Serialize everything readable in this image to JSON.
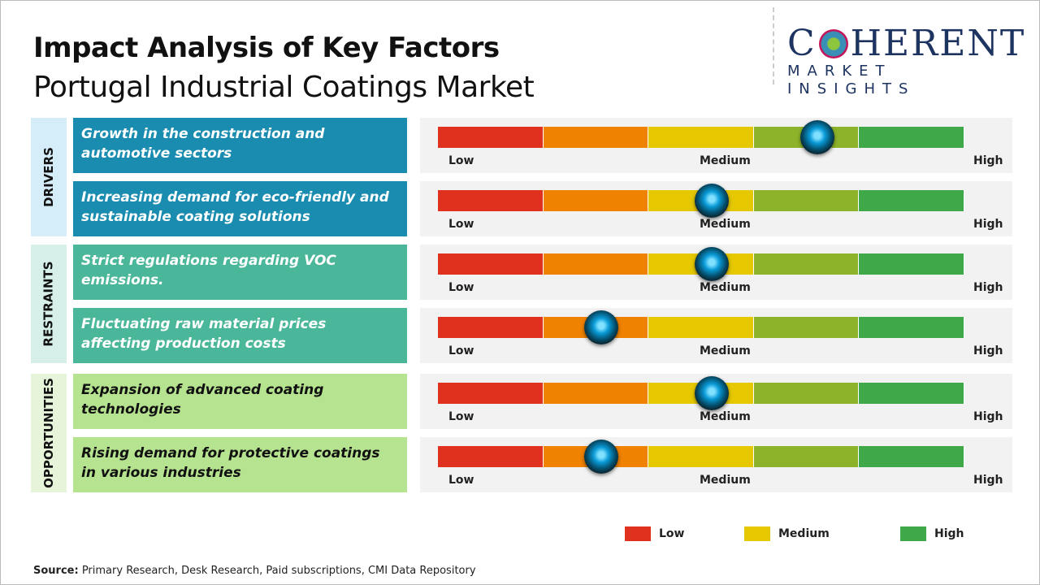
{
  "header": {
    "title": "Impact Analysis of Key Factors",
    "subtitle": "Portugal Industrial Coatings Market"
  },
  "logo": {
    "main_1": "C",
    "main_2": "HERENT",
    "sub": "MARKET INSIGHTS"
  },
  "scale": {
    "low": "Low",
    "medium": "Medium",
    "high": "High",
    "segment_colors": [
      "#e0301e",
      "#ef8200",
      "#e6c800",
      "#8db32a",
      "#3fa94a"
    ]
  },
  "groups": [
    {
      "label": "DRIVERS",
      "side_color": "#d5edf8",
      "box_color": "#1a8cb0",
      "text_color": "#ffffff"
    },
    {
      "label": "RESTRAINTS",
      "side_color": "#d6efe8",
      "box_color": "#4bb79a",
      "text_color": "#ffffff"
    },
    {
      "label": "OPPORTUNITIES",
      "side_color": "#e6f4da",
      "box_color": "#b6e38f",
      "text_color": "#111111"
    }
  ],
  "factors": [
    {
      "text": "Growth in the construction and automotive sectors",
      "group": 0,
      "impact": 0.72
    },
    {
      "text": "Increasing demand for eco-friendly and sustainable coating solutions",
      "group": 0,
      "impact": 0.52
    },
    {
      "text": "Strict regulations regarding VOC emissions.",
      "group": 1,
      "impact": 0.52
    },
    {
      "text": "Fluctuating raw material prices affecting production costs",
      "group": 1,
      "impact": 0.31
    },
    {
      "text": "Expansion of advanced coating technologies",
      "group": 2,
      "impact": 0.52
    },
    {
      "text": "Rising demand for protective coatings in various industries",
      "group": 2,
      "impact": 0.31
    }
  ],
  "legend": [
    {
      "label": "Low",
      "color": "#e0301e"
    },
    {
      "label": "Medium",
      "color": "#e6c800"
    },
    {
      "label": "High",
      "color": "#3fa94a"
    }
  ],
  "source": {
    "label": "Source:",
    "text": " Primary Research, Desk Research, Paid subscriptions, CMI Data Repository"
  }
}
